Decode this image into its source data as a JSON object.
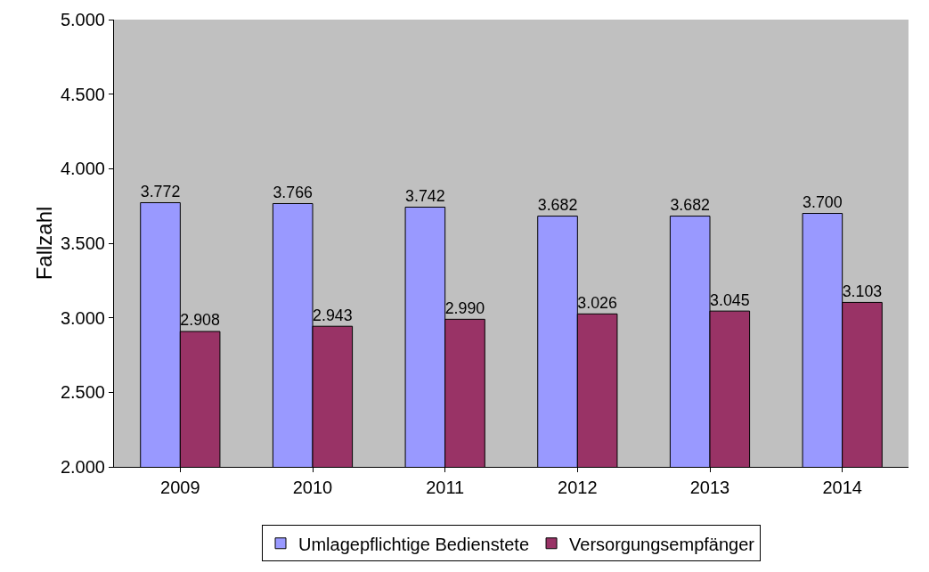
{
  "chart_data": {
    "type": "bar",
    "ylabel": "Fallzahl",
    "categories": [
      "2009",
      "2010",
      "2011",
      "2012",
      "2013",
      "2014"
    ],
    "series": [
      {
        "name": "Umlagepflichtige Bedienstete",
        "color": "#9999ff",
        "values": [
          3772,
          3766,
          3742,
          3682,
          3682,
          3700
        ],
        "value_labels": [
          "3.772",
          "3.766",
          "3.742",
          "3.682",
          "3.682",
          "3.700"
        ]
      },
      {
        "name": "Versorgungsempfänger",
        "color": "#993366",
        "values": [
          2908,
          2943,
          2990,
          3026,
          3045,
          3103
        ],
        "value_labels": [
          "2.908",
          "2.943",
          "2.990",
          "3.026",
          "3.045",
          "3.103"
        ]
      }
    ],
    "ylim": [
      2000,
      5000
    ],
    "yticks": [
      {
        "value": 2000,
        "label": "2.000"
      },
      {
        "value": 2500,
        "label": "2.500"
      },
      {
        "value": 3000,
        "label": "3.000"
      },
      {
        "value": 3500,
        "label": "3.500"
      },
      {
        "value": 4000,
        "label": "4.000"
      },
      {
        "value": 4500,
        "label": "4.500"
      },
      {
        "value": 5000,
        "label": "5.000"
      }
    ],
    "grid": false,
    "legend": "bottom"
  }
}
